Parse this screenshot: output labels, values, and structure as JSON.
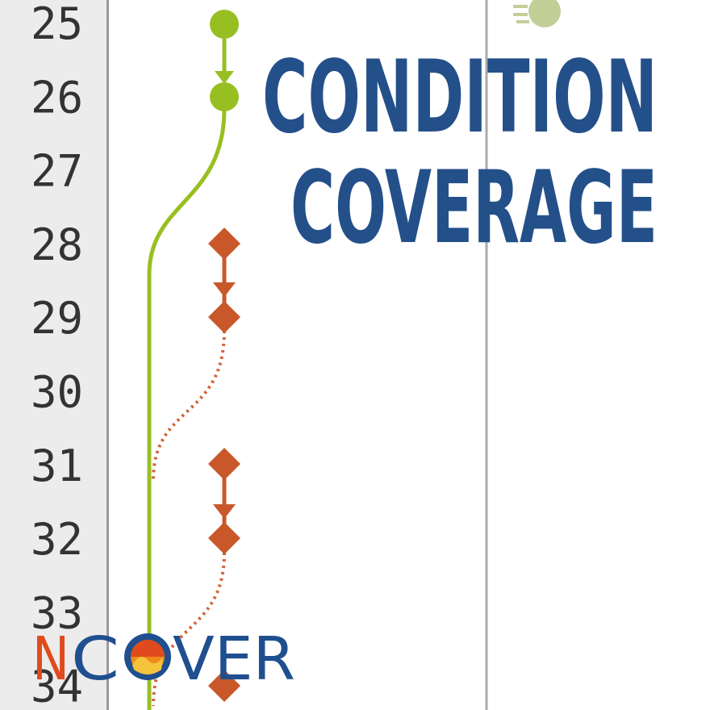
{
  "gutter": {
    "line_numbers": [
      25,
      26,
      27,
      28,
      29,
      30,
      31,
      32,
      33,
      34
    ]
  },
  "title": {
    "lines": [
      "CONDITION",
      "COVERAGE"
    ]
  },
  "logo": {
    "parts": [
      "N",
      "C",
      "VER"
    ]
  }
}
